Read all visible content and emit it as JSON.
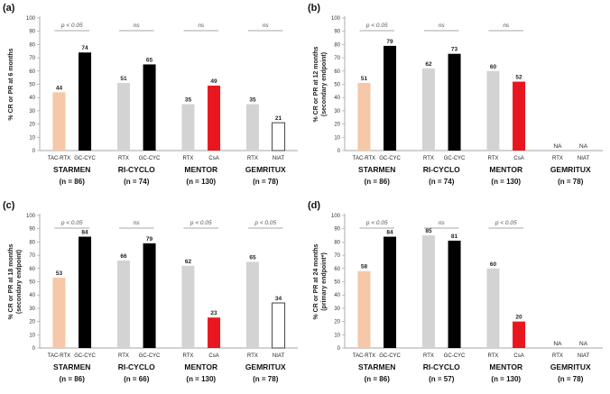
{
  "colors": {
    "tac": "#F6C7A9",
    "gc": "#000000",
    "rtx": "#D3D3D3",
    "csa": "#E8171F",
    "niat_fill": "#ffffff",
    "niat_stroke": "#444444"
  },
  "chart_data": [
    {
      "type": "bar",
      "panel_label": "(a)",
      "ylabel": [
        "% CR or PR at 6 months"
      ],
      "ylim": [
        0,
        100
      ],
      "yticks": [
        0,
        10,
        20,
        30,
        40,
        50,
        60,
        70,
        80,
        90,
        100
      ],
      "groups": [
        {
          "trial": "STARMEN",
          "n": "(n = 86)",
          "sig": "p < 0.05",
          "bars": [
            {
              "cat": "TAC-RTX",
              "value": 44,
              "label": "44",
              "color": "tac"
            },
            {
              "cat": "GC-CYC",
              "value": 74,
              "label": "74",
              "color": "gc"
            }
          ]
        },
        {
          "trial": "RI-CYCLO",
          "n": "(n = 74)",
          "sig": "ns",
          "bars": [
            {
              "cat": "RTX",
              "value": 51,
              "label": "51",
              "color": "rtx"
            },
            {
              "cat": "GC-CYC",
              "value": 65,
              "label": "65",
              "color": "gc"
            }
          ]
        },
        {
          "trial": "MENTOR",
          "n": "(n = 130)",
          "sig": "ns",
          "bars": [
            {
              "cat": "RTX",
              "value": 35,
              "label": "35",
              "color": "rtx"
            },
            {
              "cat": "CsA",
              "value": 49,
              "label": "49",
              "color": "csa"
            }
          ]
        },
        {
          "trial": "GEMRITUX",
          "n": "(n = 78)",
          "sig": "ns",
          "bars": [
            {
              "cat": "RTX",
              "value": 35,
              "label": "35",
              "color": "rtx"
            },
            {
              "cat": "NIAT",
              "value": 21,
              "label": "21",
              "color": "niat"
            }
          ]
        }
      ]
    },
    {
      "type": "bar",
      "panel_label": "(b)",
      "ylabel": [
        "% CR or PR at 12 months",
        "(secondary endpoint)"
      ],
      "ylim": [
        0,
        100
      ],
      "yticks": [
        0,
        10,
        20,
        30,
        40,
        50,
        60,
        70,
        80,
        90,
        100
      ],
      "groups": [
        {
          "trial": "STARMEN",
          "n": "(n = 86)",
          "sig": "p < 0.05",
          "bars": [
            {
              "cat": "TAC-RTX",
              "value": 51,
              "label": "51",
              "color": "tac"
            },
            {
              "cat": "GC-CYC",
              "value": 79,
              "label": "79",
              "color": "gc"
            }
          ]
        },
        {
          "trial": "RI-CYCLO",
          "n": "(n = 74)",
          "sig": "ns",
          "bars": [
            {
              "cat": "RTX",
              "value": 62,
              "label": "62",
              "color": "rtx"
            },
            {
              "cat": "GC-CYC",
              "value": 73,
              "label": "73",
              "color": "gc"
            }
          ]
        },
        {
          "trial": "MENTOR",
          "n": "(n = 130)",
          "sig": "ns",
          "bars": [
            {
              "cat": "RTX",
              "value": 60,
              "label": "60",
              "color": "rtx"
            },
            {
              "cat": "CsA",
              "value": 52,
              "label": "52",
              "color": "csa"
            }
          ]
        },
        {
          "trial": "GEMRITUX",
          "n": "(n = 78)",
          "sig": "",
          "bars": [
            {
              "cat": "RTX",
              "value": null,
              "label": "NA",
              "color": "none"
            },
            {
              "cat": "NIAT",
              "value": null,
              "label": "NA",
              "color": "none"
            }
          ]
        }
      ]
    },
    {
      "type": "bar",
      "panel_label": "(c)",
      "ylabel": [
        "% CR or PR at 18 months",
        "(secondary endpoint)"
      ],
      "ylim": [
        0,
        100
      ],
      "yticks": [
        0,
        10,
        20,
        30,
        40,
        50,
        60,
        70,
        80,
        90,
        100
      ],
      "groups": [
        {
          "trial": "STARMEN",
          "n": "(n = 86)",
          "sig": "p < 0.05",
          "bars": [
            {
              "cat": "TAC-RTX",
              "value": 53,
              "label": "53",
              "color": "tac"
            },
            {
              "cat": "GC-CYC",
              "value": 84,
              "label": "84",
              "color": "gc"
            }
          ]
        },
        {
          "trial": "RI-CYCLO",
          "n": "(n = 66)",
          "sig": "ns",
          "bars": [
            {
              "cat": "RTX",
              "value": 66,
              "label": "66",
              "color": "rtx"
            },
            {
              "cat": "GC-CYC",
              "value": 79,
              "label": "79",
              "color": "gc"
            }
          ]
        },
        {
          "trial": "MENTOR",
          "n": "(n = 130)",
          "sig": "p < 0.05",
          "bars": [
            {
              "cat": "RTX",
              "value": 62,
              "label": "62",
              "color": "rtx"
            },
            {
              "cat": "CsA",
              "value": 23,
              "label": "23",
              "color": "csa"
            }
          ]
        },
        {
          "trial": "GEMRITUX",
          "n": "(n = 78)",
          "sig": "p < 0.05",
          "bars": [
            {
              "cat": "RTX",
              "value": 65,
              "label": "65",
              "color": "rtx"
            },
            {
              "cat": "NIAT",
              "value": 34,
              "label": "34",
              "color": "niat"
            }
          ]
        }
      ]
    },
    {
      "type": "bar",
      "panel_label": "(d)",
      "ylabel": [
        "% CR or PR at 24 months",
        "(primary endpoint*)"
      ],
      "ylim": [
        0,
        100
      ],
      "yticks": [
        0,
        10,
        20,
        30,
        40,
        50,
        60,
        70,
        80,
        90,
        100
      ],
      "groups": [
        {
          "trial": "STARMEN",
          "n": "(n = 86)",
          "sig": "p < 0.05",
          "bars": [
            {
              "cat": "TAC-RTX",
              "value": 58,
              "label": "58",
              "color": "tac"
            },
            {
              "cat": "GC-CYC",
              "value": 84,
              "label": "84",
              "color": "gc"
            }
          ]
        },
        {
          "trial": "RI-CYCLO",
          "n": "(n = 57)",
          "sig": "ns",
          "bars": [
            {
              "cat": "RTX",
              "value": 85,
              "label": "85",
              "color": "rtx"
            },
            {
              "cat": "GC-CYC",
              "value": 81,
              "label": "81",
              "color": "gc"
            }
          ]
        },
        {
          "trial": "MENTOR",
          "n": "(n = 130)",
          "sig": "p < 0.05",
          "bars": [
            {
              "cat": "RTX",
              "value": 60,
              "label": "60",
              "color": "rtx"
            },
            {
              "cat": "CsA",
              "value": 20,
              "label": "20",
              "color": "csa"
            }
          ]
        },
        {
          "trial": "GEMRITUX",
          "n": "(n = 78)",
          "sig": "",
          "bars": [
            {
              "cat": "RTX",
              "value": null,
              "label": "NA",
              "color": "none"
            },
            {
              "cat": "NIAT",
              "value": null,
              "label": "NA",
              "color": "none"
            }
          ]
        }
      ]
    }
  ]
}
